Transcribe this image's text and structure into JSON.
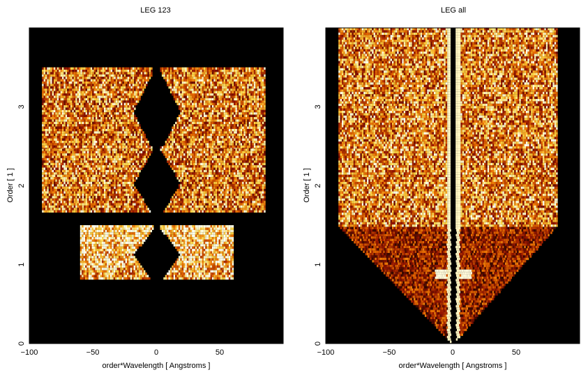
{
  "chart_data": [
    {
      "type": "heatmap",
      "title": "LEG 123",
      "xlabel": "order*Wavelength [ Angstroms ]",
      "ylabel": "Order [ 1 ]",
      "xlim": [
        -100,
        100
      ],
      "ylim": [
        0,
        4
      ],
      "xticks": [
        -100,
        -50,
        0,
        50
      ],
      "yticks": [
        0,
        1,
        2,
        3
      ],
      "colormap": "black-red-orange-yellow-white",
      "background": "#000000",
      "regions": [
        {
          "order": 1,
          "y": [
            0.83,
            1.5
          ],
          "x_left": [
            -60,
            -3
          ],
          "x_right": [
            3,
            60
          ]
        },
        {
          "order": 2,
          "y": [
            1.67,
            2.5
          ],
          "x_left": [
            -90,
            -3
          ],
          "x_right": [
            3,
            85
          ]
        },
        {
          "order": 3,
          "y": [
            2.5,
            3.5
          ],
          "x_left": [
            -90,
            -3
          ],
          "x_right": [
            3,
            85
          ]
        }
      ]
    },
    {
      "type": "heatmap",
      "title": "LEG all",
      "xlabel": "order*Wavelength [ Angstroms ]",
      "ylabel": "Order [ 1 ]",
      "xlim": [
        -100,
        100
      ],
      "ylim": [
        0,
        4
      ],
      "xticks": [
        -100,
        -50,
        0,
        50
      ],
      "yticks": [
        0,
        1,
        2,
        3
      ],
      "colormap": "black-red-orange-yellow-white",
      "background": "#000000",
      "regions": [
        {
          "order": "all",
          "y": [
            0,
            4
          ],
          "x_left": [
            -90,
            -1
          ],
          "x_right": [
            1,
            82
          ]
        }
      ]
    }
  ]
}
